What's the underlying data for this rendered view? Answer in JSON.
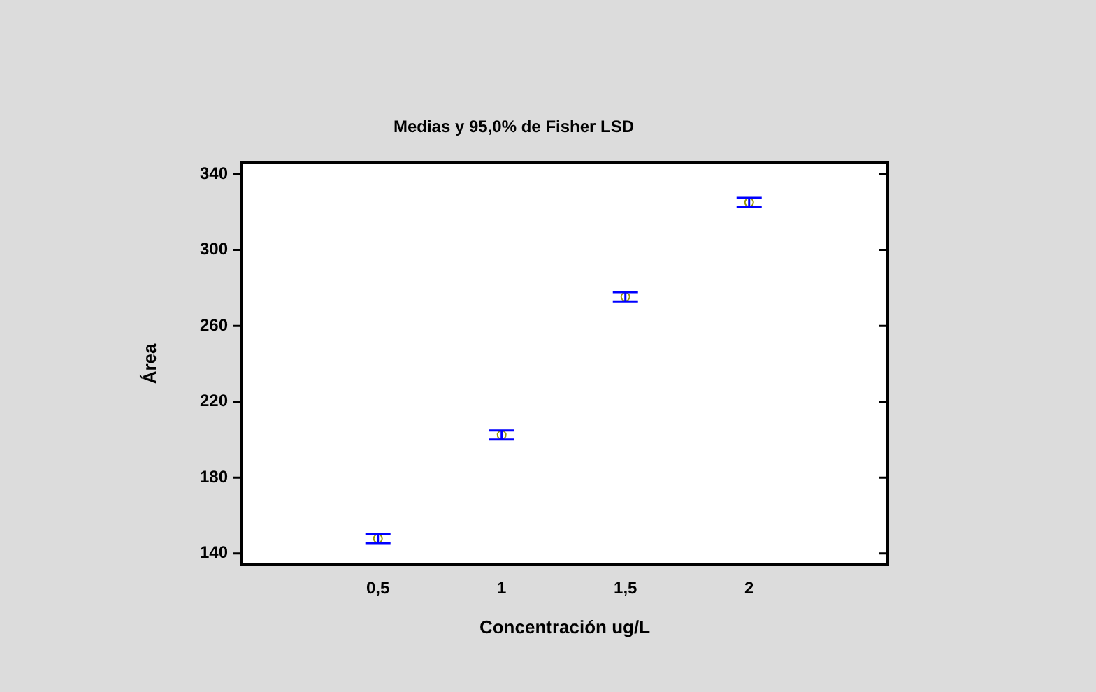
{
  "chart_data": {
    "type": "scatter",
    "title": "Medias y 95,0% de Fisher LSD",
    "xlabel": "Concentración ug/L",
    "ylabel": "Área",
    "x": [
      0.5,
      1,
      1.5,
      2
    ],
    "series": [
      {
        "color": "#999900",
        "values": [
          147.8,
          202.5,
          275.3,
          325.1
        ],
        "errors": [
          2.4,
          2.4,
          2.4,
          2.4
        ]
      }
    ],
    "xlim": [
      -0.05,
      2.56
    ],
    "xticks": [
      {
        "value": 0.5,
        "label": "0,5"
      },
      {
        "value": 1,
        "label": "1"
      },
      {
        "value": 1.5,
        "label": "1,5"
      },
      {
        "value": 2,
        "label": "2"
      }
    ],
    "ylim": [
      134,
      346
    ],
    "yticks": [
      140,
      180,
      220,
      260,
      300,
      340
    ],
    "marker": "circle",
    "grid": false,
    "legend": false
  }
}
